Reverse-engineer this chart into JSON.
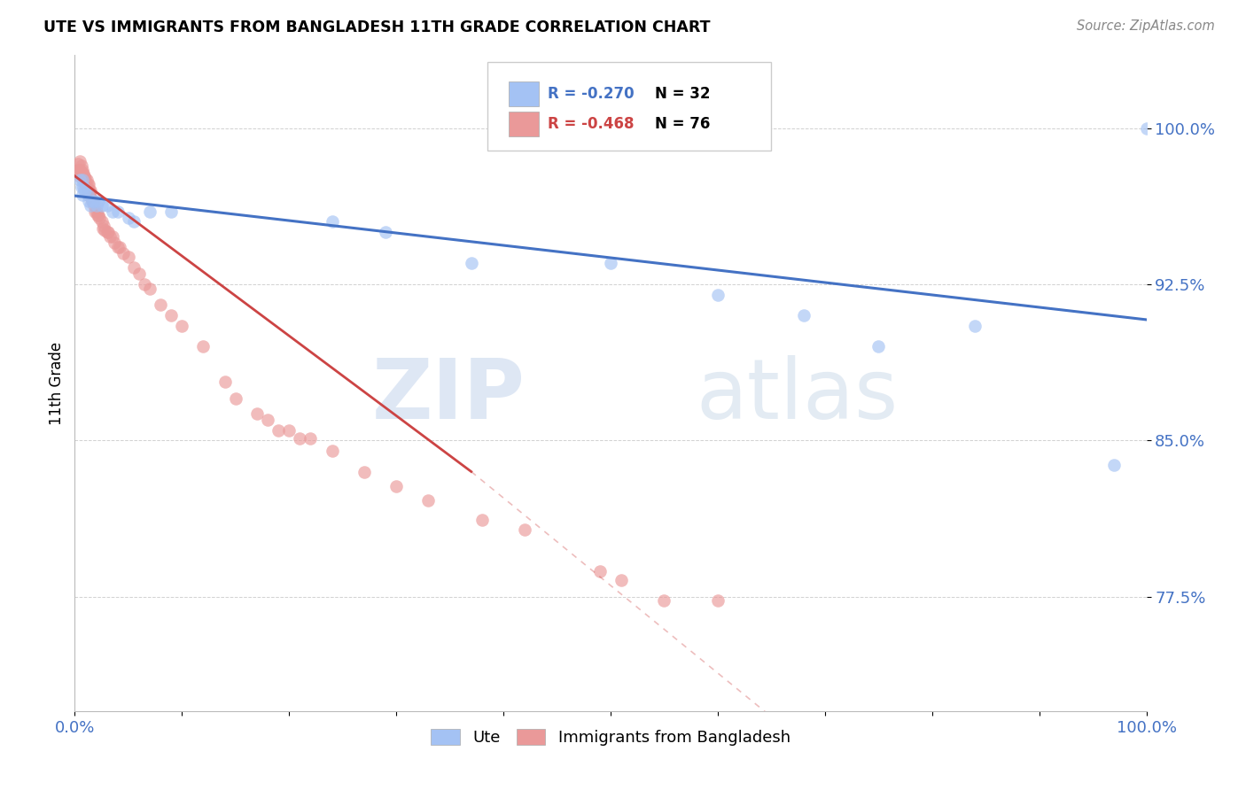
{
  "title": "UTE VS IMMIGRANTS FROM BANGLADESH 11TH GRADE CORRELATION CHART",
  "source": "Source: ZipAtlas.com",
  "ylabel": "11th Grade",
  "watermark_zip": "ZIP",
  "watermark_atlas": "atlas",
  "legend_blue_r": "R = -0.270",
  "legend_blue_n": "N = 32",
  "legend_pink_r": "R = -0.468",
  "legend_pink_n": "N = 76",
  "legend_label_blue": "Ute",
  "legend_label_pink": "Immigrants from Bangladesh",
  "yticks": [
    0.775,
    0.85,
    0.925,
    1.0
  ],
  "ytick_labels": [
    "77.5%",
    "85.0%",
    "92.5%",
    "100.0%"
  ],
  "xlim": [
    0.0,
    1.0
  ],
  "ylim": [
    0.72,
    1.035
  ],
  "blue_color": "#a4c2f4",
  "pink_color": "#ea9999",
  "blue_line_color": "#4472c4",
  "pink_line_color": "#cc4444",
  "right_label_color": "#4472c4",
  "grid_color": "#cccccc",
  "blue_scatter_x": [
    0.005,
    0.006,
    0.007,
    0.007,
    0.008,
    0.009,
    0.01,
    0.012,
    0.013,
    0.015,
    0.016,
    0.018,
    0.02,
    0.022,
    0.025,
    0.03,
    0.035,
    0.04,
    0.05,
    0.055,
    0.07,
    0.09,
    0.24,
    0.29,
    0.37,
    0.5,
    0.6,
    0.68,
    0.75,
    0.84,
    0.97,
    1.0
  ],
  "blue_scatter_y": [
    0.975,
    0.972,
    0.968,
    0.975,
    0.972,
    0.97,
    0.97,
    0.968,
    0.965,
    0.963,
    0.965,
    0.965,
    0.963,
    0.965,
    0.963,
    0.963,
    0.96,
    0.96,
    0.957,
    0.955,
    0.96,
    0.96,
    0.955,
    0.95,
    0.935,
    0.935,
    0.92,
    0.91,
    0.895,
    0.905,
    0.838,
    1.0
  ],
  "pink_scatter_x": [
    0.002,
    0.003,
    0.004,
    0.005,
    0.005,
    0.005,
    0.006,
    0.006,
    0.007,
    0.007,
    0.007,
    0.008,
    0.008,
    0.009,
    0.009,
    0.01,
    0.01,
    0.01,
    0.011,
    0.011,
    0.012,
    0.012,
    0.013,
    0.013,
    0.013,
    0.014,
    0.014,
    0.015,
    0.015,
    0.016,
    0.017,
    0.018,
    0.019,
    0.02,
    0.021,
    0.022,
    0.023,
    0.025,
    0.026,
    0.027,
    0.028,
    0.03,
    0.031,
    0.033,
    0.035,
    0.037,
    0.04,
    0.042,
    0.045,
    0.05,
    0.055,
    0.06,
    0.065,
    0.07,
    0.08,
    0.09,
    0.1,
    0.12,
    0.14,
    0.15,
    0.17,
    0.18,
    0.19,
    0.2,
    0.21,
    0.22,
    0.24,
    0.27,
    0.3,
    0.33,
    0.38,
    0.42,
    0.49,
    0.51,
    0.55,
    0.6
  ],
  "pink_scatter_y": [
    0.98,
    0.983,
    0.98,
    0.977,
    0.98,
    0.984,
    0.979,
    0.982,
    0.977,
    0.98,
    0.978,
    0.976,
    0.978,
    0.975,
    0.977,
    0.974,
    0.976,
    0.973,
    0.972,
    0.975,
    0.97,
    0.973,
    0.97,
    0.973,
    0.968,
    0.968,
    0.97,
    0.967,
    0.97,
    0.965,
    0.965,
    0.963,
    0.96,
    0.96,
    0.958,
    0.958,
    0.957,
    0.955,
    0.952,
    0.953,
    0.951,
    0.95,
    0.95,
    0.948,
    0.948,
    0.945,
    0.943,
    0.943,
    0.94,
    0.938,
    0.933,
    0.93,
    0.925,
    0.923,
    0.915,
    0.91,
    0.905,
    0.895,
    0.878,
    0.87,
    0.863,
    0.86,
    0.855,
    0.855,
    0.851,
    0.851,
    0.845,
    0.835,
    0.828,
    0.821,
    0.812,
    0.807,
    0.787,
    0.783,
    0.773,
    0.773
  ],
  "blue_trend_x": [
    0.0,
    1.0
  ],
  "blue_trend_y": [
    0.9675,
    0.908
  ],
  "pink_trend_x0": 0.0,
  "pink_trend_y0": 0.977,
  "pink_trend_x_solid_end": 0.37,
  "pink_trend_y_solid_end": 0.835,
  "pink_trend_x_dash_end": 1.0,
  "pink_trend_y_dash_end": 0.57
}
